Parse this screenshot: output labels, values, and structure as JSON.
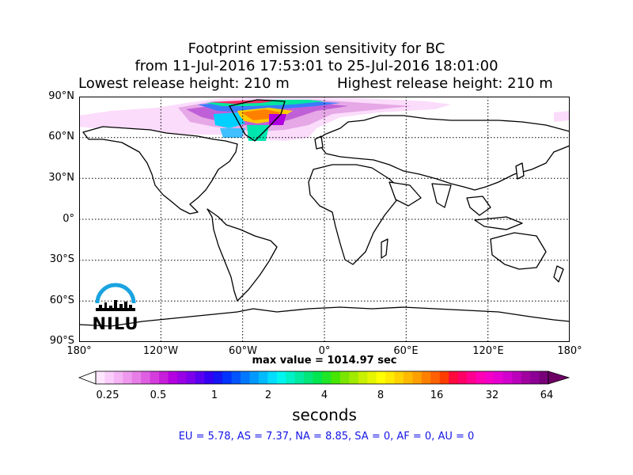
{
  "header": {
    "title_line1": "Footprint emission sensitivity for BC",
    "title_line2": "from 11-Jul-2016 17:53:01 to 25-Jul-2016 18:01:00",
    "lowest_release": "Lowest release height: 210 m",
    "highest_release": "Highest release height: 210 m"
  },
  "map": {
    "lat_labels": [
      "90°N",
      "60°N",
      "30°N",
      "0°",
      "30°S",
      "60°S",
      "90°S"
    ],
    "lon_labels": [
      "180°",
      "120°W",
      "60°W",
      "0°",
      "60°E",
      "120°E",
      "180°"
    ],
    "gridlines": true,
    "logo_text": "NILU"
  },
  "max_value": "max value = 1014.97 sec",
  "colorbar": {
    "tick_labels": [
      "0.25",
      "0.5",
      "1",
      "2",
      "4",
      "8",
      "16",
      "32",
      "64"
    ],
    "unit": "seconds",
    "colors": [
      "#ffe6ff",
      "#fbcdfb",
      "#f5b4f5",
      "#ee99ee",
      "#e87de8",
      "#df5fe3",
      "#d43cde",
      "#c61ed9",
      "#b400e0",
      "#9a00e6",
      "#7d00ec",
      "#5a00f0",
      "#3300f3",
      "#1414f5",
      "#0033ff",
      "#0055ff",
      "#0077ff",
      "#0099ff",
      "#00bbff",
      "#00ddff",
      "#00f5f0",
      "#00f0c8",
      "#00eaa0",
      "#00e678",
      "#00e650",
      "#20e628",
      "#46e600",
      "#7ae600",
      "#a0eb00",
      "#c8f000",
      "#e6f500",
      "#ffff00",
      "#ffea00",
      "#ffd200",
      "#ffb900",
      "#ffa000",
      "#ff8000",
      "#ff6000",
      "#ff3c00",
      "#ff0a3c",
      "#ff0066",
      "#ff0090",
      "#ff00b4",
      "#f500c8",
      "#e600d2",
      "#d200cc",
      "#bb00bb",
      "#a000a0",
      "#8c0096",
      "#780078"
    ],
    "under_color": "#ffffff",
    "over_color": "#6e0064"
  },
  "region_stats": "EU = 5.78,  AS = 7.37,  NA = 8.85,  SA = 0,  AF = 0,  AU = 0"
}
